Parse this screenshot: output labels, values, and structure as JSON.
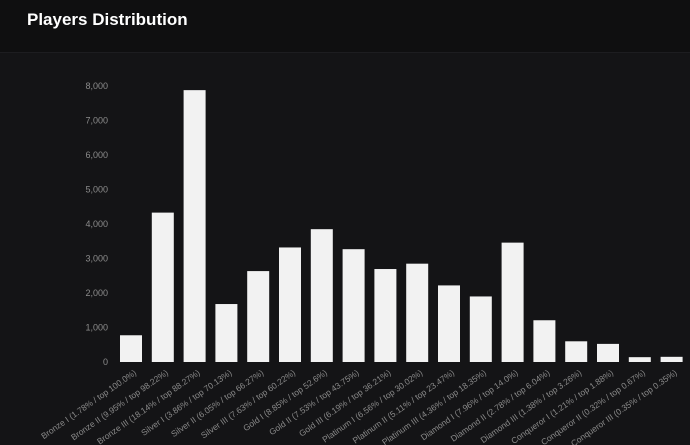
{
  "header": {
    "title": "Players Distribution"
  },
  "colors": {
    "background": "#141416",
    "bar": "#f2f2f2",
    "text": "#8c8c8c"
  },
  "chart_data": {
    "type": "bar",
    "title": "Players Distribution",
    "xlabel": "",
    "ylabel": "",
    "ylim": [
      0,
      8000
    ],
    "grid": false,
    "legend": "none",
    "yticks": [
      "0",
      "1,000",
      "2,000",
      "3,000",
      "4,000",
      "5,000",
      "6,000",
      "7,000",
      "8,000"
    ],
    "categories": [
      "Bronze I (1.78% / top 100.0%)",
      "Bronze II (9.95% / top 98.22%)",
      "Bronze III (18.14% / top 88.27%)",
      "Silver I (3.86% / top 70.13%)",
      "Silver II (6.05% / top 66.27%)",
      "Silver III (7.63% / top 60.22%)",
      "Gold I (8.85% / top 52.6%)",
      "Gold II (7.53% / top 43.75%)",
      "Gold III (6.19% / top 36.21%)",
      "Platinum I (6.56% / top 30.02%)",
      "Platinum II (5.11% / top 23.47%)",
      "Platinum III (4.36% / top 18.35%)",
      "Diamond I (7.96% / top 14.0%)",
      "Diamond II (2.78% / top 6.04%)",
      "Diamond III (1.38% / top 3.26%)",
      "Conqueror I (1.21% / top 1.88%)",
      "Conqueror II (0.32% / top 0.67%)",
      "Conqueror III (0.35% / top 0.35%)"
    ],
    "values": [
      775,
      4330,
      7880,
      1680,
      2635,
      3320,
      3850,
      3270,
      2695,
      2850,
      2220,
      1900,
      3460,
      1210,
      600,
      525,
      140,
      150
    ]
  }
}
